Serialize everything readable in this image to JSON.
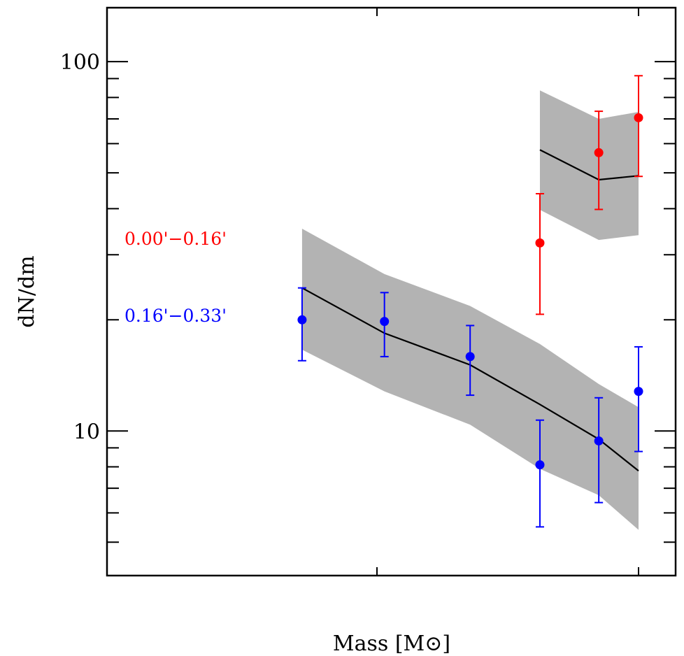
{
  "chart_data": {
    "type": "scatter",
    "title": "",
    "xlabel": "Mass [M⊙]",
    "ylabel": "dN/dm",
    "yscale": "log",
    "xscale": "log",
    "ylim": [
      4.06,
      140
    ],
    "xlim": [
      0.2,
      1.1
    ],
    "x_major_ticks": [
      0.5,
      1.0
    ],
    "y_tick_labels": [
      {
        "value": 10,
        "label": "10"
      },
      {
        "value": 100,
        "label": "100"
      }
    ],
    "legend_position": "left",
    "series": [
      {
        "name": "0.00'−0.16'",
        "color": "#ff0000",
        "x": [
          0.77,
          0.9,
          1.0
        ],
        "y": [
          32.3,
          56.7,
          70.5
        ],
        "y_err_low": [
          20.7,
          39.8,
          48.9
        ],
        "y_err_high": [
          43.9,
          73.4,
          91.6
        ],
        "model": [
          57.7,
          47.9,
          49.1
        ],
        "model_low": [
          39.7,
          32.9,
          33.9
        ],
        "model_high": [
          83.6,
          70.0,
          73.1
        ]
      },
      {
        "name": "0.16'−0.33'",
        "color": "#0000ff",
        "x": [
          0.41,
          0.51,
          0.64,
          0.77,
          0.9,
          1.0
        ],
        "y": [
          20.0,
          19.8,
          15.9,
          8.1,
          9.4,
          12.8
        ],
        "y_err_low": [
          15.5,
          15.9,
          12.5,
          5.5,
          6.4,
          8.8
        ],
        "y_err_high": [
          24.4,
          23.7,
          19.3,
          10.7,
          12.3,
          16.9
        ],
        "model": [
          24.4,
          18.4,
          15.1,
          11.8,
          9.5,
          7.8
        ],
        "model_low": [
          16.6,
          12.8,
          10.4,
          7.9,
          6.7,
          5.4
        ],
        "model_high": [
          35.3,
          26.6,
          21.8,
          17.2,
          13.4,
          11.6
        ]
      }
    ]
  }
}
